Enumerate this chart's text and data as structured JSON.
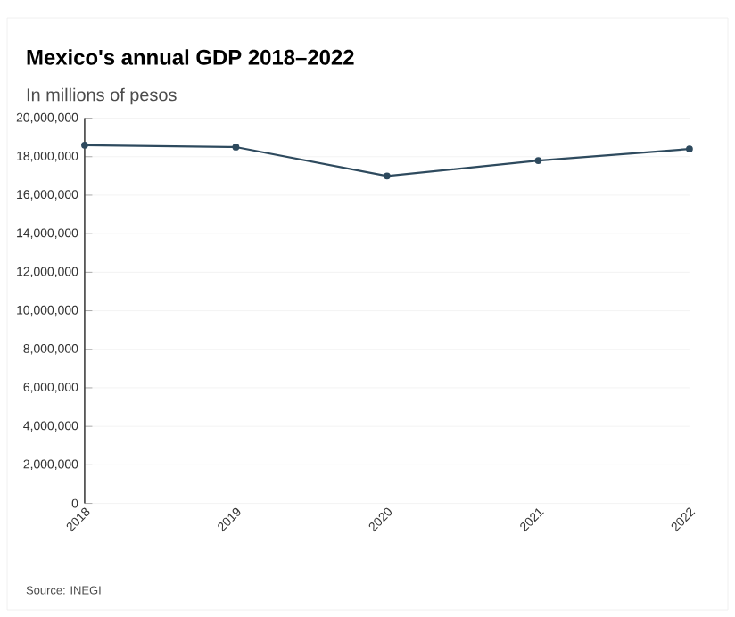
{
  "chart_data": {
    "type": "line",
    "title": "Mexico's annual GDP 2018–2022",
    "subtitle": "In millions of pesos",
    "categories": [
      "2018",
      "2019",
      "2020",
      "2021",
      "2022"
    ],
    "series": [
      {
        "color": "#2e4a5e",
        "values": [
          18600000,
          18500000,
          17000000,
          17800000,
          18400000
        ]
      }
    ],
    "ylim": [
      0,
      20000000
    ],
    "yticks": [
      {
        "value": 0,
        "label": "0"
      },
      {
        "value": 2000000,
        "label": "2,000,000"
      },
      {
        "value": 4000000,
        "label": "4,000,000"
      },
      {
        "value": 6000000,
        "label": "6,000,000"
      },
      {
        "value": 8000000,
        "label": "8,000,000"
      },
      {
        "value": 10000000,
        "label": "10,000,000"
      },
      {
        "value": 12000000,
        "label": "12,000,000"
      },
      {
        "value": 14000000,
        "label": "14,000,000"
      },
      {
        "value": 16000000,
        "label": "16,000,000"
      },
      {
        "value": 18000000,
        "label": "18,000,000"
      },
      {
        "value": 20000000,
        "label": "20,000,000"
      }
    ],
    "grid": "y",
    "marker": "circle",
    "annotations": [
      "Source: INEGI"
    ]
  }
}
